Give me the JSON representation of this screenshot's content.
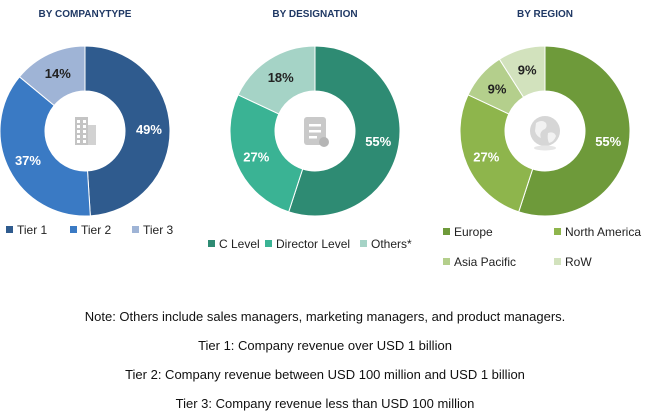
{
  "colors": {
    "tier1": "#2f5b8e",
    "tier2": "#3a7ac4",
    "tier3": "#9fb4d6",
    "c_level": "#2e8b73",
    "director": "#3ab394",
    "others": "#a5d3c6",
    "europe": "#6e9a3a",
    "north_america": "#8eb54c",
    "asia_pacific": "#b4cf8c",
    "row": "#d2e2bd"
  },
  "chart_data": [
    {
      "type": "pie",
      "title": "BY COMPANYTYPE",
      "center_icon": "building-icon",
      "series": [
        {
          "name": "Tier 1",
          "value": 49,
          "label": "49%",
          "color_key": "tier1"
        },
        {
          "name": "Tier 2",
          "value": 37,
          "label": "37%",
          "color_key": "tier2"
        },
        {
          "name": "Tier 3",
          "value": 14,
          "label": "14%",
          "color_key": "tier3"
        }
      ]
    },
    {
      "type": "pie",
      "title": "BY DESIGNATION",
      "center_icon": "document-icon",
      "series": [
        {
          "name": "C Level",
          "value": 55,
          "label": "55%",
          "color_key": "c_level"
        },
        {
          "name": "Director Level",
          "value": 27,
          "label": "27%",
          "color_key": "director"
        },
        {
          "name": "Others*",
          "value": 18,
          "label": "18%",
          "color_key": "others"
        }
      ]
    },
    {
      "type": "pie",
      "title": "BY REGION",
      "center_icon": "globe-icon",
      "series": [
        {
          "name": "Europe",
          "value": 55,
          "label": "55%",
          "color_key": "europe"
        },
        {
          "name": "North America",
          "value": 27,
          "label": "27%",
          "color_key": "north_america"
        },
        {
          "name": "Asia Pacific",
          "value": 9,
          "label": "9%",
          "color_key": "asia_pacific"
        },
        {
          "name": "RoW",
          "value": 9,
          "label": "9%",
          "color_key": "row"
        }
      ]
    }
  ],
  "notes": {
    "others": "Note: Others include sales managers, marketing managers, and product managers.",
    "tier1": "Tier 1: Company revenue over USD 1 billion",
    "tier2": "Tier 2: Company revenue between USD 100 million and USD 1 billion",
    "tier3": "Tier 3: Company revenue less than USD 100 million"
  }
}
